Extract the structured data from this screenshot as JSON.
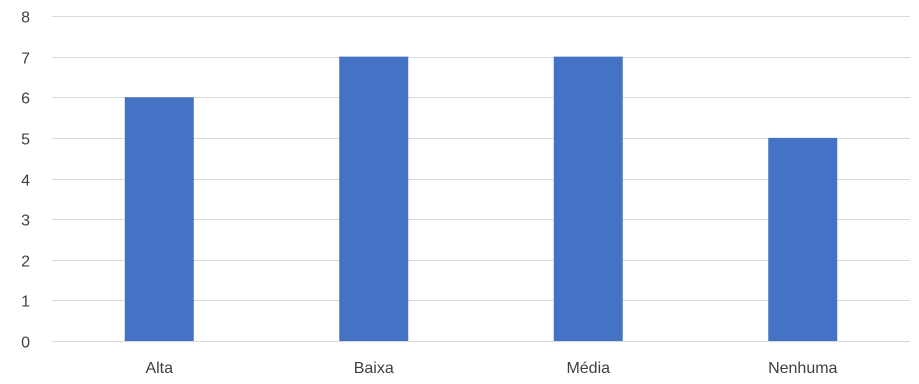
{
  "chart_data": {
    "type": "bar",
    "categories": [
      "Alta",
      "Baixa",
      "Média",
      "Nenhuma"
    ],
    "values": [
      6,
      7,
      7,
      5
    ],
    "title": "",
    "xlabel": "",
    "ylabel": "",
    "ylim": [
      0,
      8
    ],
    "yticks": [
      "0",
      "1",
      "2",
      "3",
      "4",
      "5",
      "6",
      "7",
      "8"
    ],
    "grid": true,
    "legend": "none"
  },
  "colors": {
    "bar": "#4472c4",
    "grid": "#d9d9d9",
    "text": "#404040"
  }
}
